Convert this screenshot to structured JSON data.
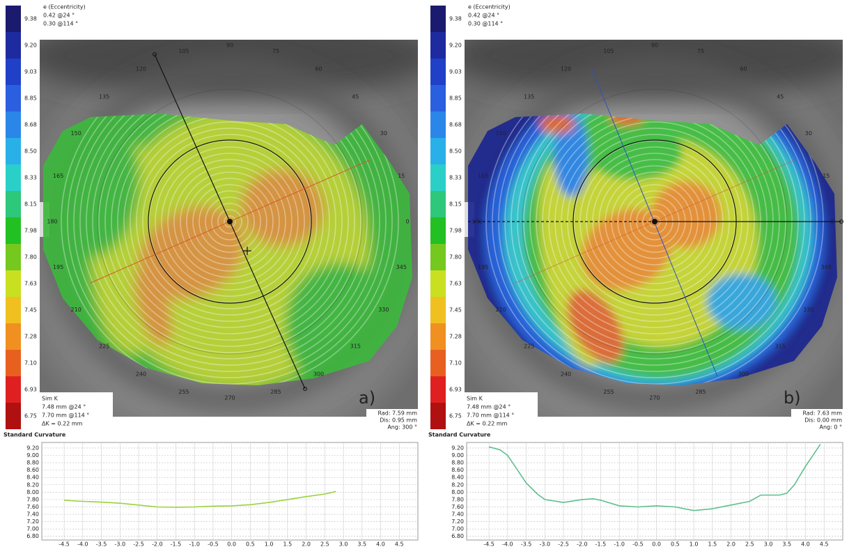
{
  "maps": [
    {
      "eccentricity_title": "e (Eccentricity)",
      "eccentricity": [
        "0.42 @24 °",
        "0.30 @114 °"
      ],
      "scale": [
        {
          "label": "9.38",
          "color": "#1a1a6e"
        },
        {
          "label": "9.20",
          "color": "#1e2aa0"
        },
        {
          "label": "9.03",
          "color": "#2040c8"
        },
        {
          "label": "8.85",
          "color": "#2a5fe0"
        },
        {
          "label": "8.68",
          "color": "#2a86e8"
        },
        {
          "label": "8.50",
          "color": "#29b0e8"
        },
        {
          "label": "8.33",
          "color": "#2ad0c8"
        },
        {
          "label": "8.15",
          "color": "#2ec87a"
        },
        {
          "label": "7.98",
          "color": "#22c022"
        },
        {
          "label": "7.80",
          "color": "#74c81e"
        },
        {
          "label": "7.63",
          "color": "#c8e020"
        },
        {
          "label": "7.45",
          "color": "#f0c020"
        },
        {
          "label": "7.28",
          "color": "#f09020"
        },
        {
          "label": "7.10",
          "color": "#e86020"
        },
        {
          "label": "6.93",
          "color": "#e02020"
        },
        {
          "label": "6.75",
          "color": "#b01010"
        }
      ],
      "angles": [
        "0",
        "15",
        "30",
        "45",
        "60",
        "75",
        "90",
        "105",
        "120",
        "135",
        "150",
        "165",
        "180",
        "195",
        "210",
        "225",
        "240",
        "255",
        "270",
        "285",
        "300",
        "315",
        "330",
        "345"
      ],
      "sim_k_title": "Sim K",
      "sim_k": [
        "7.48 mm @24 °",
        "7.70 mm @114 °",
        "ΔK = 0.22 mm"
      ],
      "readout": [
        "Rad: 7.59 mm",
        "Dis: 0.95 mm",
        "Ang: 300 °"
      ],
      "tag": "a)",
      "profile_title": "Standard Curvature"
    },
    {
      "eccentricity_title": "e (Eccentricity)",
      "eccentricity": [
        "0.42 @24 °",
        "0.30 @114 °"
      ],
      "scale": [
        {
          "label": "9.38",
          "color": "#1a1a6e"
        },
        {
          "label": "9.20",
          "color": "#1e2aa0"
        },
        {
          "label": "9.03",
          "color": "#2040c8"
        },
        {
          "label": "8.85",
          "color": "#2a5fe0"
        },
        {
          "label": "8.68",
          "color": "#2a86e8"
        },
        {
          "label": "8.50",
          "color": "#29b0e8"
        },
        {
          "label": "8.33",
          "color": "#2ad0c8"
        },
        {
          "label": "8.15",
          "color": "#2ec87a"
        },
        {
          "label": "7.98",
          "color": "#22c022"
        },
        {
          "label": "7.80",
          "color": "#74c81e"
        },
        {
          "label": "7.63",
          "color": "#c8e020"
        },
        {
          "label": "7.45",
          "color": "#f0c020"
        },
        {
          "label": "7.28",
          "color": "#f09020"
        },
        {
          "label": "7.10",
          "color": "#e86020"
        },
        {
          "label": "6.93",
          "color": "#e02020"
        },
        {
          "label": "6.75",
          "color": "#b01010"
        }
      ],
      "angles": [
        "0",
        "15",
        "30",
        "45",
        "60",
        "75",
        "90",
        "105",
        "120",
        "135",
        "150",
        "165",
        "180",
        "195",
        "210",
        "225",
        "240",
        "255",
        "270",
        "285",
        "300",
        "315",
        "330",
        "345"
      ],
      "sim_k_title": "Sim K",
      "sim_k": [
        "7.48 mm @24 °",
        "7.70 mm @114 °",
        "ΔK = 0.22 mm"
      ],
      "readout": [
        "Rad: 7.63 mm",
        "Dis: 0.00 mm",
        "Ang: 0 °"
      ],
      "tag": "b)",
      "profile_title": "Standard Curvature"
    }
  ],
  "chart_data": [
    {
      "type": "line",
      "x": [
        -4.5,
        -4,
        -3.5,
        -3,
        -2.5,
        -2,
        -1.5,
        -1,
        -0.5,
        0,
        0.5,
        1,
        1.5,
        2,
        2.5,
        2.8
      ],
      "series": [
        {
          "color": "#9ad23a",
          "values": [
            7.78,
            7.75,
            7.73,
            7.7,
            7.65,
            7.6,
            7.59,
            7.6,
            7.62,
            7.63,
            7.66,
            7.72,
            7.8,
            7.88,
            7.95,
            8.02
          ]
        }
      ],
      "xlim": [
        -5.1,
        5.0
      ],
      "ylim": [
        6.7,
        9.35
      ],
      "xticks": [
        -4.5,
        {
          "value": -4,
          "label": "-4.0"
        },
        -3.5,
        {
          "value": -3,
          "label": "-3.0"
        },
        -2.5,
        {
          "value": -2,
          "label": "-2.0"
        },
        -1.5,
        {
          "value": -1,
          "label": "-1.0"
        },
        -0.5,
        {
          "value": 0,
          "label": "0.0"
        },
        0.5,
        {
          "value": 1,
          "label": "1.0"
        },
        1.5,
        {
          "value": 2,
          "label": "2.0"
        },
        2.5,
        {
          "value": 3,
          "label": "3.0"
        },
        3.5,
        {
          "value": 4,
          "label": "4.0"
        },
        4.5
      ],
      "yticks": [
        {
          "value": 6.8,
          "label": "6.80"
        },
        {
          "value": 7,
          "label": "7.00"
        },
        {
          "value": 7.2,
          "label": "7.20"
        },
        {
          "value": 7.4,
          "label": "7.40"
        },
        {
          "value": 7.6,
          "label": "7.60"
        },
        {
          "value": 7.8,
          "label": "7.80"
        },
        {
          "value": 8,
          "label": "8.00"
        },
        {
          "value": 8.2,
          "label": "8.20"
        },
        {
          "value": 8.4,
          "label": "8.40"
        },
        {
          "value": 8.6,
          "label": "8.60"
        },
        {
          "value": 8.8,
          "label": "8.80"
        },
        {
          "value": 9,
          "label": "9.00"
        },
        {
          "value": 9.2,
          "label": "9.20"
        }
      ],
      "grid": true
    },
    {
      "type": "line",
      "x": [
        -4.5,
        -4.2,
        -4,
        -3.8,
        -3.5,
        -3.2,
        -3,
        -2.5,
        -2,
        -1.7,
        -1.5,
        -1,
        -0.5,
        0,
        0.5,
        1,
        1.5,
        2,
        2.5,
        2.8,
        3,
        3.3,
        3.5,
        3.7,
        4,
        4.4
      ],
      "series": [
        {
          "color": "#5cbf8a",
          "values": [
            9.23,
            9.15,
            9.0,
            8.7,
            8.25,
            7.95,
            7.8,
            7.72,
            7.8,
            7.82,
            7.78,
            7.63,
            7.6,
            7.63,
            7.6,
            7.5,
            7.55,
            7.65,
            7.75,
            7.92,
            7.92,
            7.92,
            7.97,
            8.2,
            8.7,
            9.3
          ]
        }
      ],
      "xlim": [
        -5.1,
        5.0
      ],
      "ylim": [
        6.7,
        9.35
      ],
      "xticks": [
        -4.5,
        {
          "value": -4,
          "label": "-4.0"
        },
        -3.5,
        {
          "value": -3,
          "label": "-3.0"
        },
        -2.5,
        {
          "value": -2,
          "label": "-2.0"
        },
        -1.5,
        {
          "value": -1,
          "label": "-1.0"
        },
        -0.5,
        {
          "value": 0,
          "label": "0.0"
        },
        0.5,
        {
          "value": 1,
          "label": "1.0"
        },
        1.5,
        {
          "value": 2,
          "label": "2.0"
        },
        2.5,
        {
          "value": 3,
          "label": "3.0"
        },
        3.5,
        {
          "value": 4,
          "label": "4.0"
        },
        4.5
      ],
      "yticks": [
        {
          "value": 6.8,
          "label": "6.80"
        },
        {
          "value": 7,
          "label": "7.00"
        },
        {
          "value": 7.2,
          "label": "7.20"
        },
        {
          "value": 7.4,
          "label": "7.40"
        },
        {
          "value": 7.6,
          "label": "7.60"
        },
        {
          "value": 7.8,
          "label": "7.80"
        },
        {
          "value": 8,
          "label": "8.00"
        },
        {
          "value": 8.2,
          "label": "8.20"
        },
        {
          "value": 8.4,
          "label": "8.40"
        },
        {
          "value": 8.6,
          "label": "8.60"
        },
        {
          "value": 8.8,
          "label": "8.80"
        },
        {
          "value": 9,
          "label": "9.00"
        },
        {
          "value": 9.2,
          "label": "9.20"
        }
      ],
      "grid": true
    }
  ]
}
